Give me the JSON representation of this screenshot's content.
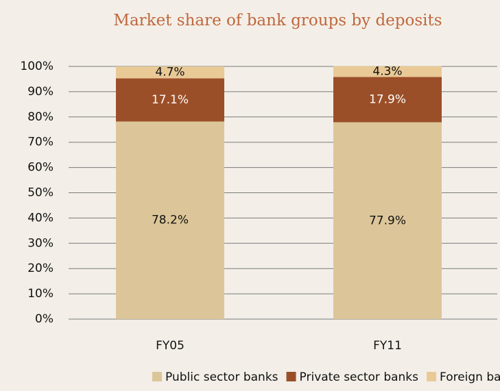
{
  "chart_data": {
    "type": "stacked_bar",
    "title": "Market share of bank groups by deposits",
    "categories": [
      "FY05",
      "FY11"
    ],
    "series": [
      {
        "name": "Public sector banks",
        "color": "#dcc699",
        "values": [
          78.2,
          77.9
        ],
        "value_labels": [
          "78.2%",
          "77.9%"
        ]
      },
      {
        "name": "Private sector banks",
        "color": "#9b4f28",
        "values": [
          17.1,
          17.9
        ],
        "value_labels": [
          "17.1%",
          "17.9%"
        ]
      },
      {
        "name": "Foreign banks",
        "color": "#e9ca96",
        "values": [
          4.7,
          4.3
        ],
        "value_labels": [
          "4.7%",
          "4.3%"
        ]
      }
    ],
    "ylim": [
      0,
      100
    ],
    "yticks": [
      {
        "value": 0,
        "label": "0%"
      },
      {
        "value": 10,
        "label": "10%"
      },
      {
        "value": 20,
        "label": "20%"
      },
      {
        "value": 30,
        "label": "30%"
      },
      {
        "value": 40,
        "label": "40%"
      },
      {
        "value": 50,
        "label": "50%"
      },
      {
        "value": 60,
        "label": "60%"
      },
      {
        "value": 70,
        "label": "70%"
      },
      {
        "value": 80,
        "label": "80%"
      },
      {
        "value": 90,
        "label": "90%"
      },
      {
        "value": 100,
        "label": "100%"
      }
    ],
    "grid": true,
    "legend": "bottom"
  }
}
